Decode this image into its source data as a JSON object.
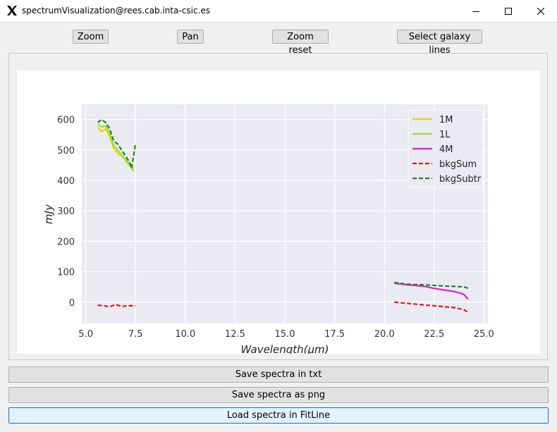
{
  "window": {
    "title": "spectrumVisualization@rees.cab.inta-csic.es",
    "app_icon": "x11-icon",
    "controls": [
      "minimize-icon",
      "maximize-icon",
      "close-icon"
    ]
  },
  "toolbar": {
    "zoom_label": "Zoom",
    "pan_label": "Pan",
    "zoom_reset_label": "Zoom reset",
    "select_lines_label": "Select galaxy lines"
  },
  "actions": {
    "save_txt_label": "Save spectra in txt",
    "save_png_label": "Save spectra as png",
    "load_fitline_label": "Load spectra in FitLine"
  },
  "chart_data": {
    "type": "line",
    "title": "",
    "xlabel": "Wavelength(μm)",
    "ylabel": "mJy",
    "xlim": [
      4.8,
      25.2
    ],
    "ylim": [
      -70,
      650
    ],
    "x_ticks": [
      "5.0",
      "7.5",
      "10.0",
      "12.5",
      "15.0",
      "17.5",
      "20.0",
      "22.5",
      "25.0"
    ],
    "x_tick_values": [
      5.0,
      7.5,
      10.0,
      12.5,
      15.0,
      17.5,
      20.0,
      22.5,
      25.0
    ],
    "y_ticks": [
      "0",
      "100",
      "200",
      "300",
      "400",
      "500",
      "600"
    ],
    "y_tick_values": [
      0,
      100,
      200,
      300,
      400,
      500,
      600
    ],
    "grid": true,
    "background": "#eaeaf2",
    "legend_position": "top-right",
    "series": [
      {
        "name": "1M",
        "color": "#e5d600",
        "dash": "solid",
        "x": [
          5.6,
          5.8,
          6.0,
          6.2,
          6.4,
          6.6,
          6.8,
          7.0,
          7.2,
          7.4
        ],
        "y": [
          575,
          560,
          570,
          545,
          505,
          490,
          480,
          470,
          455,
          440
        ]
      },
      {
        "name": "1L",
        "color": "#9be02a",
        "dash": "solid",
        "x": [
          5.6,
          5.8,
          6.0,
          6.2,
          6.4,
          6.6,
          6.8,
          7.0,
          7.2,
          7.4
        ],
        "y": [
          585,
          575,
          580,
          555,
          515,
          500,
          485,
          465,
          450,
          430
        ]
      },
      {
        "name": "4M",
        "color": "#e01fc7",
        "dash": "solid",
        "x": [
          20.5,
          21.0,
          21.5,
          22.0,
          22.5,
          23.0,
          23.5,
          23.8,
          24.0,
          24.2
        ],
        "y": [
          62,
          58,
          55,
          52,
          45,
          40,
          35,
          30,
          25,
          10
        ]
      },
      {
        "name": "bkgSum",
        "color": "#e31a1c",
        "dash": "dashed",
        "segments": [
          {
            "x": [
              5.6,
              5.9,
              6.2,
              6.5,
              6.8,
              7.1,
              7.5
            ],
            "y": [
              -10,
              -12,
              -15,
              -8,
              -14,
              -12,
              -12
            ]
          },
          {
            "x": [
              20.5,
              21.0,
              21.5,
              22.0,
              22.5,
              23.0,
              23.5,
              24.0,
              24.2
            ],
            "y": [
              0,
              -3,
              -6,
              -9,
              -12,
              -15,
              -18,
              -25,
              -33
            ]
          }
        ]
      },
      {
        "name": "bkgSubtr",
        "color": "#1a8a1a",
        "dash": "dashed",
        "segments": [
          {
            "x": [
              5.6,
              5.8,
              6.0,
              6.2,
              6.4,
              6.6,
              6.8,
              7.0,
              7.2,
              7.3,
              7.5
            ],
            "y": [
              590,
              600,
              590,
              570,
              530,
              520,
              500,
              480,
              460,
              440,
              520
            ]
          },
          {
            "x": [
              20.5,
              21.0,
              21.5,
              22.0,
              22.5,
              23.0,
              23.5,
              24.0,
              24.2
            ],
            "y": [
              65,
              60,
              58,
              57,
              55,
              53,
              52,
              50,
              46
            ]
          }
        ]
      }
    ]
  }
}
